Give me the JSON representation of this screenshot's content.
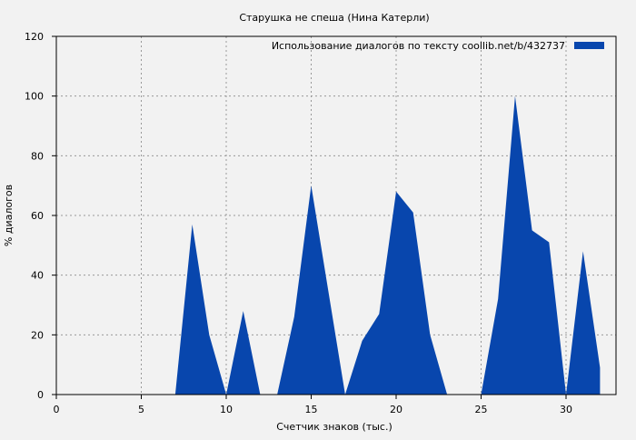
{
  "chart_data": {
    "type": "area",
    "title": "Старушка не спеша (Нина Катерли)",
    "xlabel": "Счетчик знаков (тыс.)",
    "ylabel": "% диалогов",
    "xlim": [
      0,
      33
    ],
    "ylim": [
      0,
      120
    ],
    "xticks": [
      0,
      5,
      10,
      15,
      20,
      25,
      30
    ],
    "yticks": [
      0,
      20,
      40,
      60,
      80,
      100,
      120
    ],
    "grid": true,
    "legend_position": "top-right",
    "series": [
      {
        "name": "Использование диалогов по тексту  coollib.net/b/432737",
        "color": "#0846ad",
        "x": [
          0,
          1,
          2,
          3,
          4,
          5,
          6,
          7,
          8,
          9,
          10,
          11,
          12,
          13,
          14,
          15,
          16,
          17,
          18,
          19,
          20,
          21,
          22,
          23,
          24,
          25,
          26,
          27,
          28,
          29,
          30,
          31,
          32
        ],
        "y": [
          0,
          0,
          0,
          0,
          0,
          0,
          0,
          0,
          57,
          20,
          0,
          28,
          0,
          0,
          26,
          70,
          35,
          0,
          18,
          27,
          68,
          61,
          20,
          0,
          0,
          0,
          32,
          100,
          55,
          51,
          0,
          48,
          9
        ]
      }
    ]
  }
}
